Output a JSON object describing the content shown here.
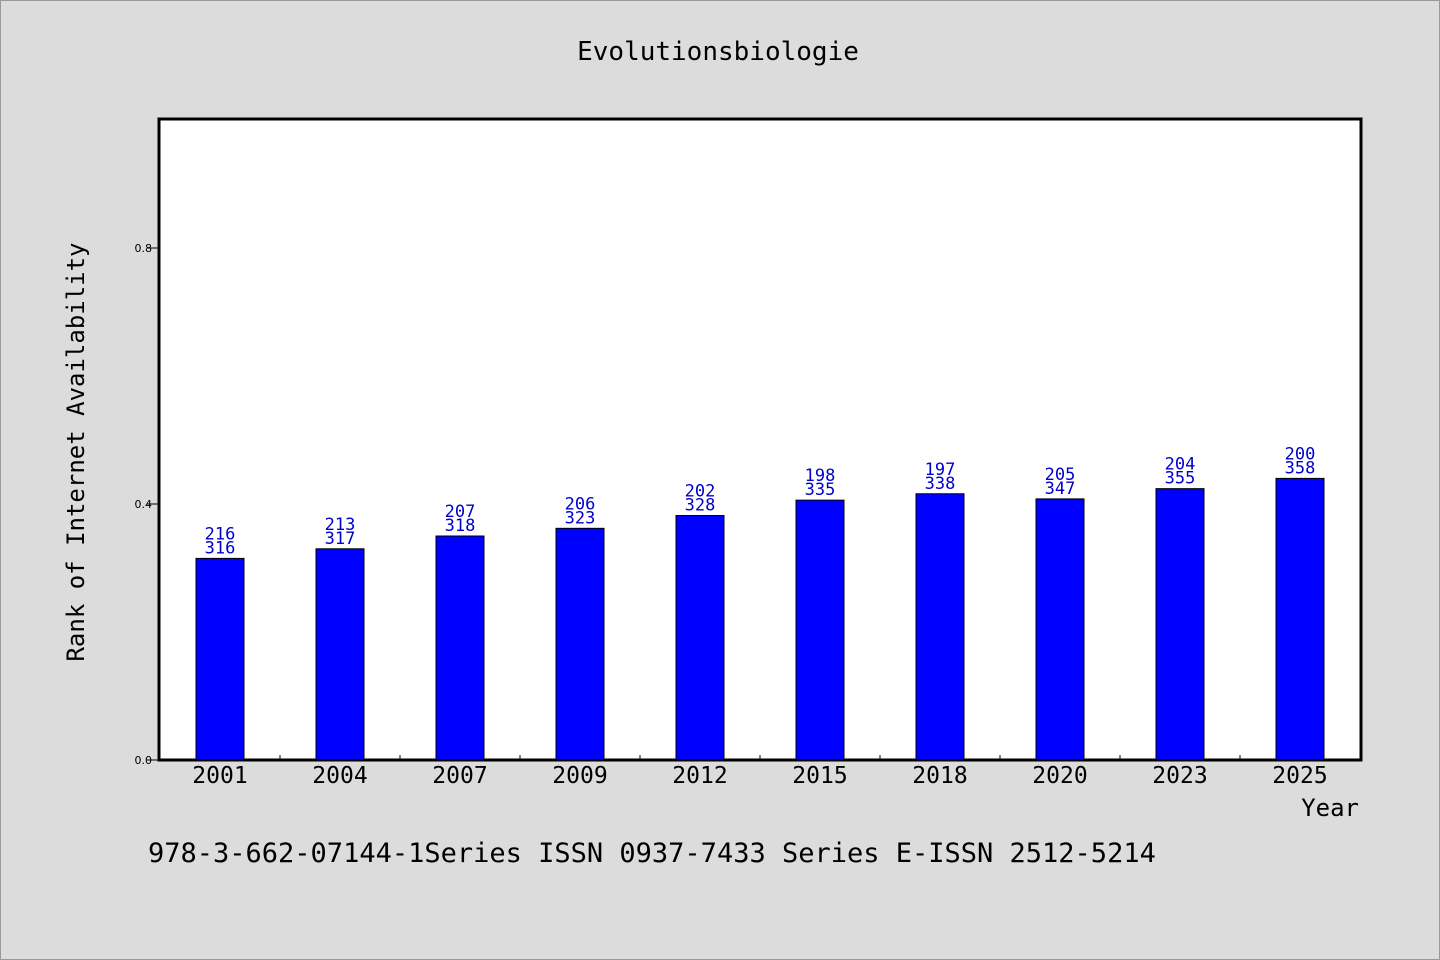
{
  "chart_data": {
    "type": "bar",
    "title": "Evolutionsbiologie",
    "xlabel": "Year",
    "ylabel": "Rank of Internet Availability",
    "ylim": [
      0,
      1.0
    ],
    "yticks": [
      "0.0",
      "0.4",
      "0.8"
    ],
    "categories": [
      "2001",
      "2004",
      "2007",
      "2009",
      "2012",
      "2015",
      "2018",
      "2020",
      "2023",
      "2025"
    ],
    "values": [
      0.315,
      0.33,
      0.35,
      0.362,
      0.382,
      0.406,
      0.416,
      0.408,
      0.424,
      0.44
    ],
    "labels_top": [
      "216",
      "213",
      "207",
      "206",
      "202",
      "198",
      "197",
      "205",
      "204",
      "200"
    ],
    "labels_bottom": [
      "316",
      "317",
      "318",
      "323",
      "328",
      "335",
      "338",
      "347",
      "355",
      "358"
    ],
    "bar_color": "#0000ff",
    "label_color": "#0000cc",
    "grid": false,
    "legend": "none"
  },
  "footer": {
    "text": "978-3-662-07144-1Series ISSN 0937-7433 Series E-ISSN 2512-5214"
  }
}
